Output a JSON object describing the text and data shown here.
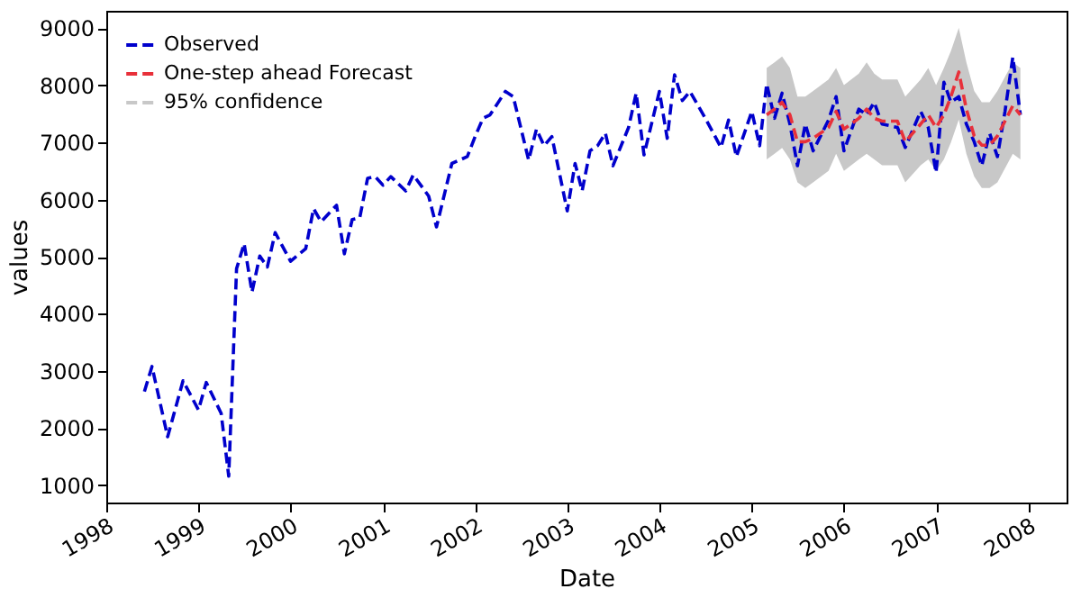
{
  "chart_data": {
    "type": "line",
    "xlabel": "Date",
    "ylabel": "values",
    "xlim": [
      "1998-01",
      "2008-06"
    ],
    "xticks": [
      "1998",
      "1999",
      "2000",
      "2001",
      "2002",
      "2003",
      "2004",
      "2005",
      "2006",
      "2007",
      "2008"
    ],
    "ylim": [
      700,
      9300
    ],
    "yticks": [
      1000,
      2000,
      3000,
      4000,
      5000,
      6000,
      7000,
      8000,
      9000
    ],
    "grid": false,
    "legend": "top left",
    "line_style": "dashed",
    "series": [
      {
        "name": "95% confidence",
        "type": "area",
        "color": "#c8c8c8",
        "x": [
          "2005-03",
          "2005-04",
          "2005-05",
          "2005-06",
          "2005-07",
          "2005-08",
          "2005-09",
          "2005-11",
          "2005-12",
          "2006-01",
          "2006-03",
          "2006-04",
          "2006-05",
          "2006-06",
          "2006-08",
          "2006-09",
          "2006-11",
          "2006-12",
          "2007-01",
          "2007-02",
          "2007-03",
          "2007-04",
          "2007-05",
          "2007-06",
          "2007-07",
          "2007-08",
          "2007-09",
          "2007-11",
          "2007-12"
        ],
        "values": [
          null,
          null,
          null,
          null,
          null,
          null,
          null,
          null,
          null,
          null,
          null,
          null,
          null,
          null,
          null,
          null,
          null,
          null,
          null,
          null,
          null,
          null,
          null,
          null,
          null,
          null,
          null,
          null,
          null
        ],
        "lower": [
          6700,
          6800,
          6900,
          6700,
          6300,
          6200,
          6300,
          6500,
          6800,
          6500,
          6700,
          6800,
          6700,
          6600,
          6600,
          6300,
          6600,
          6700,
          6500,
          6700,
          7000,
          7400,
          6800,
          6400,
          6200,
          6200,
          6300,
          6800,
          6700
        ],
        "upper": [
          8300,
          8400,
          8500,
          8300,
          7800,
          7800,
          7900,
          8100,
          8300,
          8000,
          8200,
          8400,
          8200,
          8100,
          8100,
          7800,
          8100,
          8300,
          8000,
          8300,
          8600,
          9000,
          8400,
          7900,
          7700,
          7700,
          7900,
          8400,
          8300
        ]
      },
      {
        "name": "Observed",
        "type": "line",
        "color": "#0000cc",
        "x": [
          "1998-06",
          "1998-07",
          "1998-09",
          "1998-11",
          "1999-01",
          "1999-02",
          "1999-04",
          "1999-05",
          "1999-06",
          "1999-07",
          "1999-08",
          "1999-09",
          "1999-10",
          "1999-11",
          "2000-01",
          "2000-03",
          "2000-04",
          "2000-05",
          "2000-07",
          "2000-08",
          "2000-09",
          "2000-10",
          "2000-11",
          "2000-12",
          "2001-01",
          "2001-02",
          "2001-04",
          "2001-05",
          "2001-07",
          "2001-08",
          "2001-10",
          "2001-12",
          "2002-01",
          "2002-02",
          "2002-03",
          "2002-05",
          "2002-06",
          "2002-08",
          "2002-09",
          "2002-10",
          "2002-11",
          "2003-01",
          "2003-02",
          "2003-03",
          "2003-04",
          "2003-05",
          "2003-06",
          "2003-07",
          "2003-09",
          "2003-10",
          "2003-11",
          "2004-01",
          "2004-02",
          "2004-03",
          "2004-04",
          "2004-05",
          "2004-07",
          "2004-09",
          "2004-10",
          "2004-11",
          "2005-01",
          "2005-02",
          "2005-03",
          "2005-04",
          "2005-05",
          "2005-06",
          "2005-07",
          "2005-08",
          "2005-09",
          "2005-11",
          "2005-12",
          "2006-01",
          "2006-03",
          "2006-04",
          "2006-05",
          "2006-06",
          "2006-08",
          "2006-09",
          "2006-11",
          "2006-12",
          "2007-01",
          "2007-02",
          "2007-03",
          "2007-04",
          "2007-05",
          "2007-06",
          "2007-07",
          "2007-08",
          "2007-09",
          "2007-10",
          "2007-11",
          "2007-12"
        ],
        "values": [
          2640,
          3080,
          1850,
          2830,
          2320,
          2800,
          2260,
          1160,
          4790,
          5230,
          4380,
          5010,
          4820,
          5420,
          4920,
          5140,
          5840,
          5610,
          5900,
          5050,
          5650,
          5680,
          6370,
          6400,
          6250,
          6400,
          6150,
          6430,
          6060,
          5520,
          6630,
          6750,
          7100,
          7420,
          7480,
          7890,
          7800,
          6690,
          7230,
          6940,
          7100,
          5800,
          6630,
          6150,
          6850,
          6940,
          7160,
          6590,
          7260,
          7860,
          6780,
          7890,
          7070,
          8180,
          7730,
          7890,
          7420,
          6910,
          7390,
          6750,
          7540,
          6940,
          8020,
          7420,
          7860,
          7320,
          6590,
          7320,
          6850,
          7390,
          7800,
          6850,
          7580,
          7480,
          7700,
          7320,
          7260,
          6910,
          7540,
          7260,
          6470,
          8050,
          7700,
          7800,
          7320,
          7010,
          6590,
          7160,
          6750,
          7540,
          8490,
          7480
        ]
      },
      {
        "name": "One-step ahead Forecast",
        "type": "line",
        "color": "#e8303a",
        "x": [
          "2005-03",
          "2005-04",
          "2005-05",
          "2005-06",
          "2005-07",
          "2005-08",
          "2005-09",
          "2005-11",
          "2005-12",
          "2006-01",
          "2006-03",
          "2006-04",
          "2006-05",
          "2006-06",
          "2006-08",
          "2006-09",
          "2006-11",
          "2006-12",
          "2007-01",
          "2007-02",
          "2007-03",
          "2007-04",
          "2007-05",
          "2007-06",
          "2007-07",
          "2007-08",
          "2007-09",
          "2007-11",
          "2007-12"
        ],
        "values": [
          7480,
          7580,
          7700,
          7480,
          7010,
          7010,
          7070,
          7260,
          7540,
          7230,
          7420,
          7580,
          7420,
          7370,
          7370,
          7010,
          7320,
          7480,
          7260,
          7480,
          7800,
          8230,
          7580,
          7110,
          6950,
          6950,
          7110,
          7640,
          7480
        ]
      }
    ]
  }
}
